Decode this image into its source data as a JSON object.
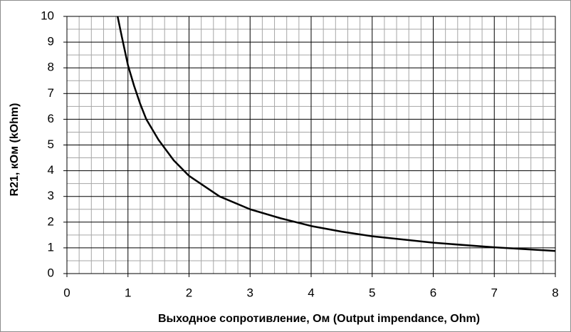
{
  "chart_data": {
    "type": "line",
    "xlabel": "Выходное сопротивление, Ом (Output impendance, Ohm)",
    "ylabel": "R21, кОм (kOhm)",
    "x": [
      0.83,
      0.9,
      1.0,
      1.1,
      1.2,
      1.3,
      1.5,
      1.75,
      2.0,
      2.5,
      3.0,
      3.5,
      4.0,
      4.5,
      5.0,
      6.0,
      7.0,
      8.0
    ],
    "series": [
      {
        "name": "R21",
        "color": "#000000",
        "values": [
          10,
          9.2,
          8.1,
          7.3,
          6.6,
          6.0,
          5.2,
          4.4,
          3.8,
          3.0,
          2.5,
          2.15,
          1.85,
          1.63,
          1.45,
          1.2,
          1.02,
          0.88
        ]
      }
    ],
    "xlim": [
      0,
      8
    ],
    "xticks": [
      0,
      1,
      2,
      3,
      4,
      5,
      6,
      7,
      8
    ],
    "ylim": [
      0,
      10
    ],
    "yticks": [
      0,
      1,
      2,
      3,
      4,
      5,
      6,
      7,
      8,
      9,
      10
    ],
    "grid": true
  }
}
